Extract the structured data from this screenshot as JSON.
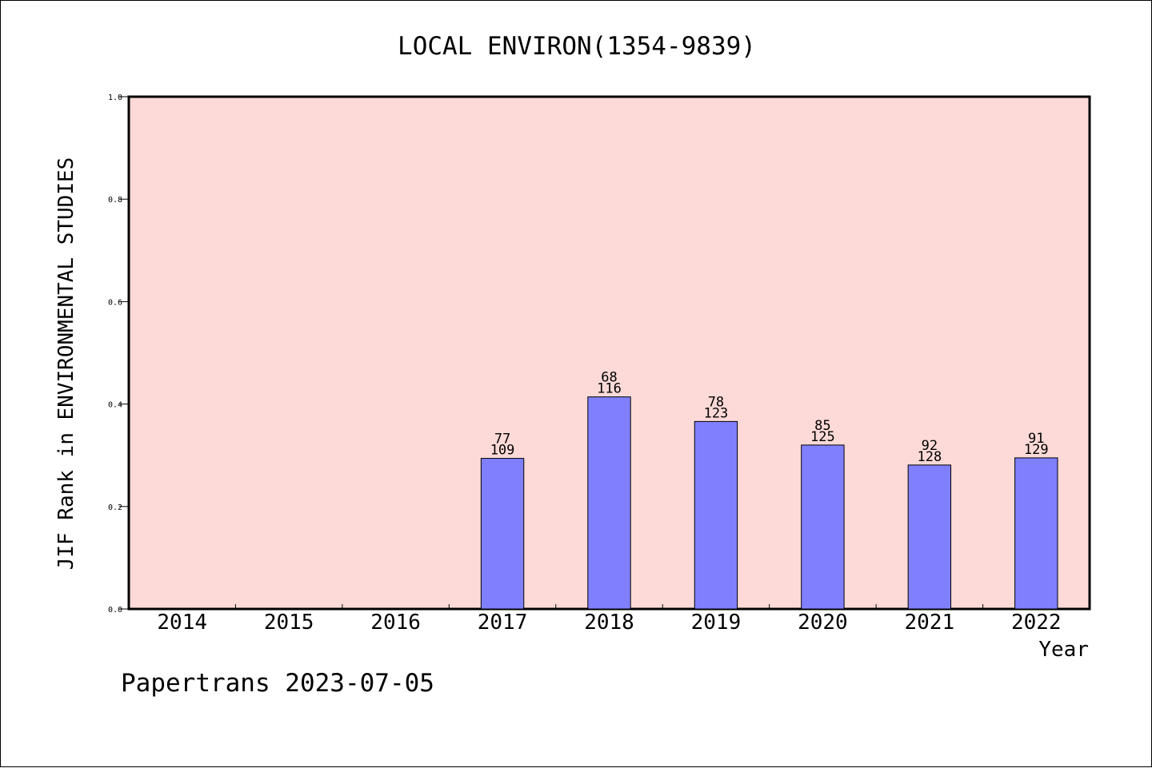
{
  "chart_data": {
    "type": "bar",
    "title": "LOCAL ENVIRON(1354-9839)",
    "xlabel": "Year",
    "ylabel": "JIF Rank in ENVIRONMENTAL STUDIES",
    "ylim": [
      0,
      1.0
    ],
    "yticks": [
      "0.0",
      "0.2",
      "0.4",
      "0.6",
      "0.8",
      "1.0"
    ],
    "categories": [
      "2014",
      "2015",
      "2016",
      "2017",
      "2018",
      "2019",
      "2020",
      "2021",
      "2022"
    ],
    "values": [
      null,
      null,
      null,
      0.294,
      0.414,
      0.366,
      0.32,
      0.281,
      0.295
    ],
    "rank": [
      null,
      null,
      null,
      "77",
      "68",
      "78",
      "85",
      "92",
      "91"
    ],
    "total": [
      null,
      null,
      null,
      "109",
      "116",
      "123",
      "125",
      "128",
      "129"
    ],
    "colors": {
      "plot_bg": "#fddad7",
      "bar": "#8080ff"
    },
    "grid": false
  },
  "footer": "Papertrans 2023-07-05"
}
